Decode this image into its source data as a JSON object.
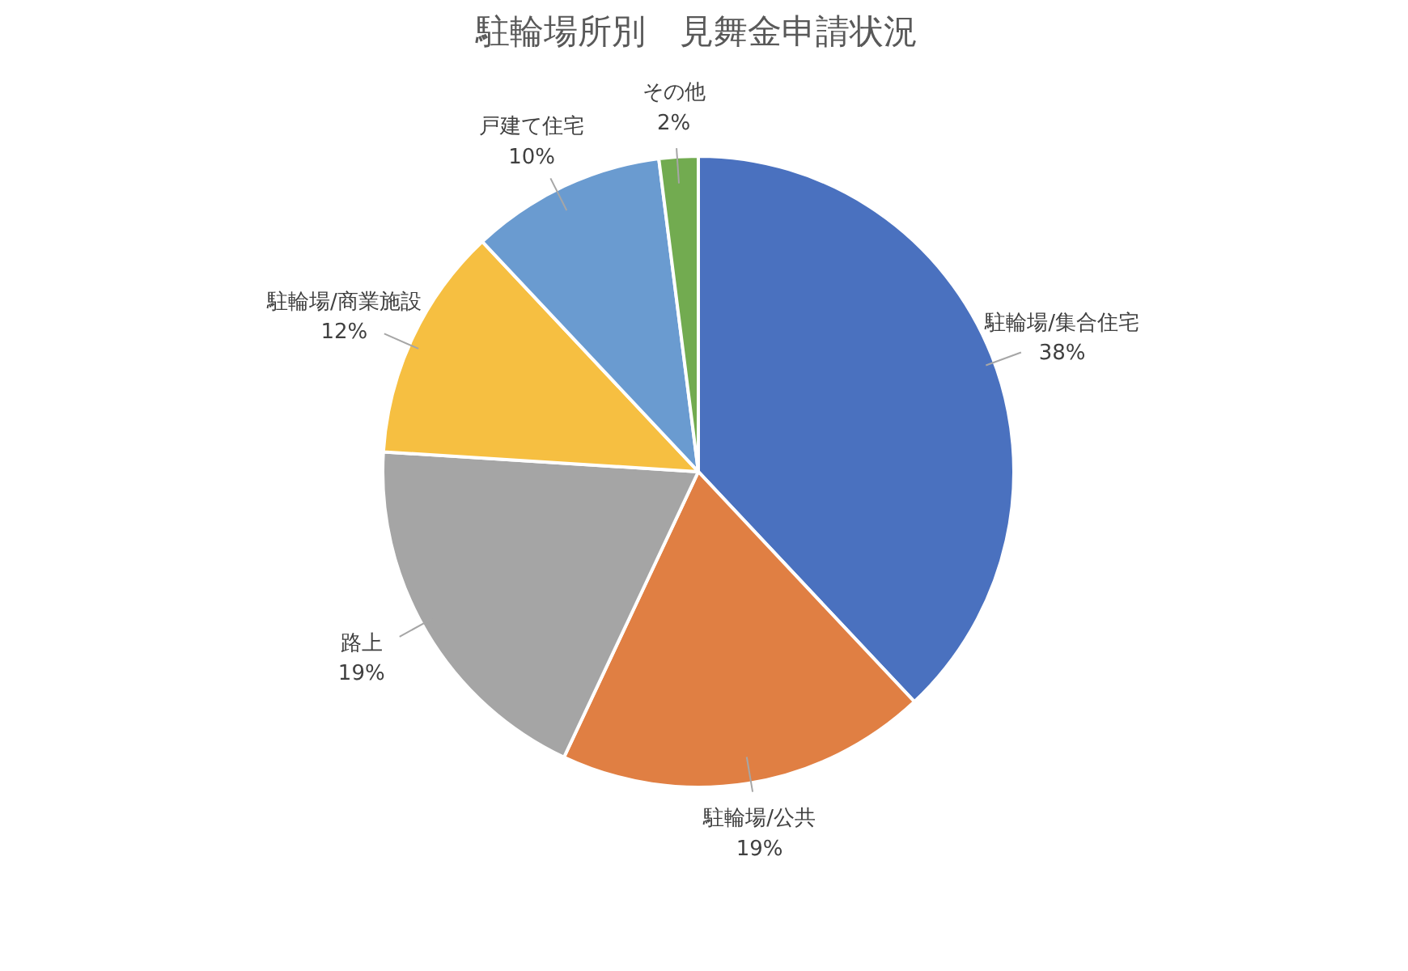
{
  "chart_data": {
    "type": "pie",
    "title": "駐輪場所別　見舞金申請状況",
    "categories": [
      "駐輪場/集合住宅",
      "駐輪場/公共",
      "路上",
      "駐輪場/商業施設",
      "戸建て住宅",
      "その他"
    ],
    "values": [
      38,
      19,
      19,
      12,
      10,
      2
    ],
    "colors": [
      "#4a71bf",
      "#e07f43",
      "#a5a5a5",
      "#f6bf41",
      "#6a9bd0",
      "#72ab50"
    ],
    "value_labels": [
      "38%",
      "19%",
      "19%",
      "12%",
      "10%",
      "2%"
    ]
  }
}
